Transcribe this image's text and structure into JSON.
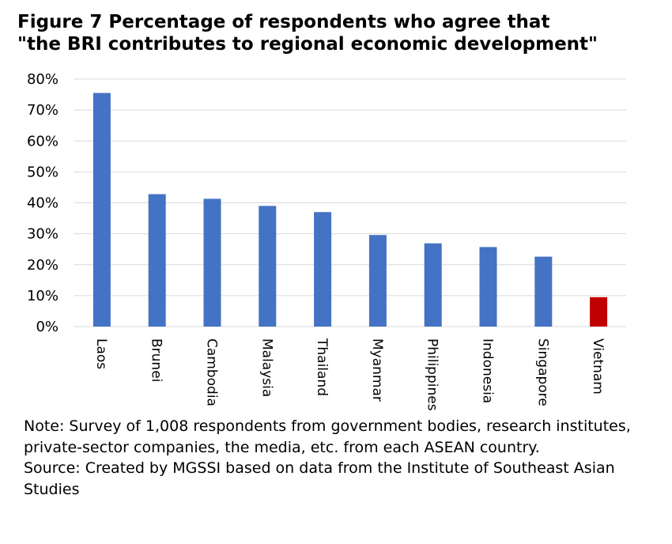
{
  "title_lines": [
    "Figure 7  Percentage of respondents who agree that",
    "\"the BRI contributes to regional economic development\""
  ],
  "note": "Note: Survey of 1,008 respondents from government bodies, research institutes, private-sector companies, the media, etc. from each ASEAN country.",
  "source": "Source: Created by MGSSI based on data from the Institute of Southeast Asian Studies",
  "chart_data": {
    "type": "bar",
    "categories": [
      "Laos",
      "Brunei",
      "Cambodia",
      "Malaysia",
      "Thailand",
      "Myanmar",
      "Philippines",
      "Indonesia",
      "Singapore",
      "Vietnam"
    ],
    "values": [
      75.5,
      42.8,
      41.3,
      39.0,
      37.0,
      29.6,
      26.9,
      25.7,
      22.6,
      9.5
    ],
    "highlight": [
      "Vietnam"
    ],
    "colors": {
      "bar": "#4472C4",
      "highlight": "#C00000",
      "grid": "#D9D9D9"
    },
    "yticks": [
      "0%",
      "10%",
      "20%",
      "30%",
      "40%",
      "50%",
      "60%",
      "70%",
      "80%"
    ],
    "ylim": [
      0,
      80
    ],
    "grid": true,
    "category_label_orientation": "rotated-90-clockwise"
  }
}
